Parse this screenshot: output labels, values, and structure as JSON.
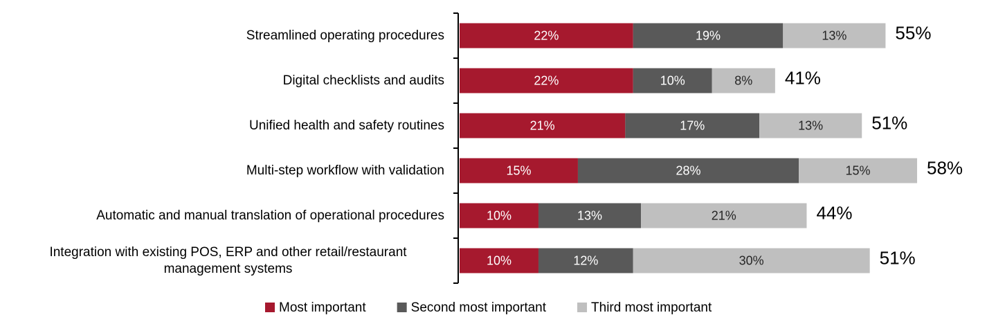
{
  "chart_data": {
    "type": "stacked-bar-horizontal",
    "categories": [
      "Streamlined operating procedures",
      "Digital checklists and audits",
      "Unified health and safety routines",
      "Multi-step workflow with validation",
      "Automatic and manual translation of operational procedures",
      "Integration with existing POS, ERP and other retail/restaurant management systems"
    ],
    "series": [
      {
        "name": "Most important",
        "color": "#a6192e",
        "values": [
          22,
          22,
          21,
          15,
          10,
          10
        ],
        "value_labels": [
          "22%",
          "22%",
          "21%",
          "15%",
          "10%",
          "10%"
        ]
      },
      {
        "name": "Second most important",
        "color": "#595959",
        "values": [
          19,
          10,
          17,
          28,
          13,
          12
        ],
        "value_labels": [
          "19%",
          "10%",
          "17%",
          "28%",
          "13%",
          "12%"
        ]
      },
      {
        "name": "Third most important",
        "color": "#bfbfbf",
        "values": [
          13,
          8,
          13,
          15,
          21,
          30
        ],
        "value_labels": [
          "13%",
          "8%",
          "13%",
          "15%",
          "21%",
          "30%"
        ]
      }
    ],
    "totals": {
      "values": [
        55,
        41,
        51,
        58,
        44,
        51
      ],
      "value_labels": [
        "55%",
        "41%",
        "51%",
        "58%",
        "44%",
        "51%"
      ]
    },
    "xlim": [
      0,
      63
    ]
  }
}
